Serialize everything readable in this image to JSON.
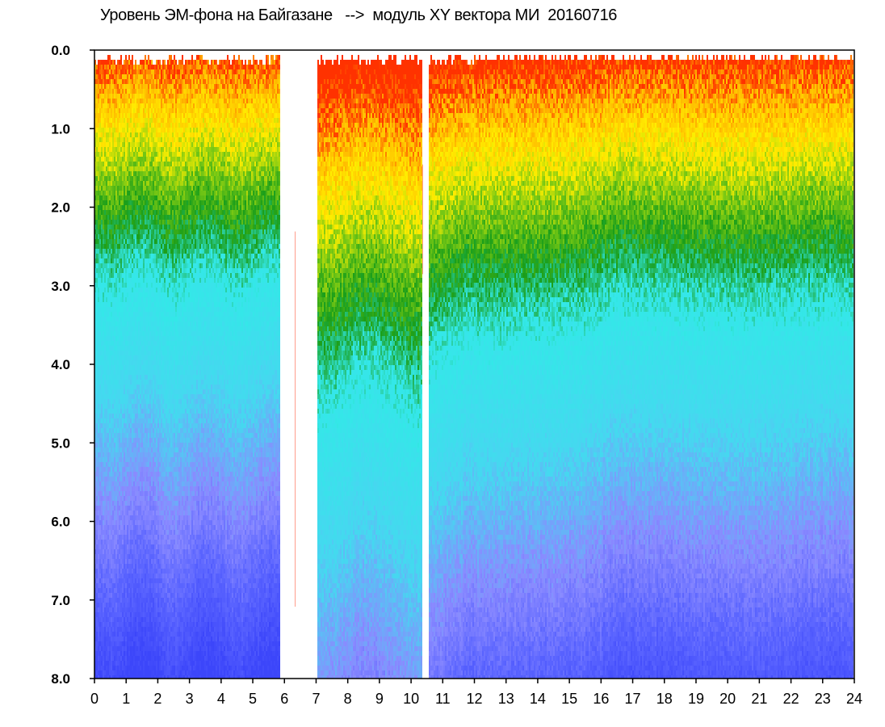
{
  "title": "Уровень ЭМ-фона на Байгазане   -->  модуль XY вектора МИ  20160716",
  "chart_data": {
    "type": "heatmap",
    "title": "Уровень ЭМ-фона на Байгазане   -->  модуль XY вектора МИ  20160716",
    "xlabel": "",
    "ylabel": "",
    "x_ticks": [
      "0",
      "1",
      "2",
      "3",
      "4",
      "5",
      "6",
      "7",
      "8",
      "9",
      "10",
      "11",
      "12",
      "13",
      "14",
      "15",
      "16",
      "17",
      "18",
      "19",
      "20",
      "21",
      "22",
      "23",
      "24"
    ],
    "y_ticks": [
      "0.0",
      "1.0",
      "2.0",
      "3.0",
      "4.0",
      "5.0",
      "6.0",
      "7.0",
      "8.0"
    ],
    "xlim": [
      0,
      24
    ],
    "ylim": [
      0,
      8
    ],
    "y_inverted": true,
    "grid": false,
    "colors": [
      "#ff2a00",
      "#ffee00",
      "#1a9e1a",
      "#33e8e8",
      "#8a8aff",
      "#2424ff"
    ],
    "data_gaps_hours": [
      [
        5.85,
        7.05
      ],
      [
        10.35,
        10.55
      ]
    ]
  }
}
